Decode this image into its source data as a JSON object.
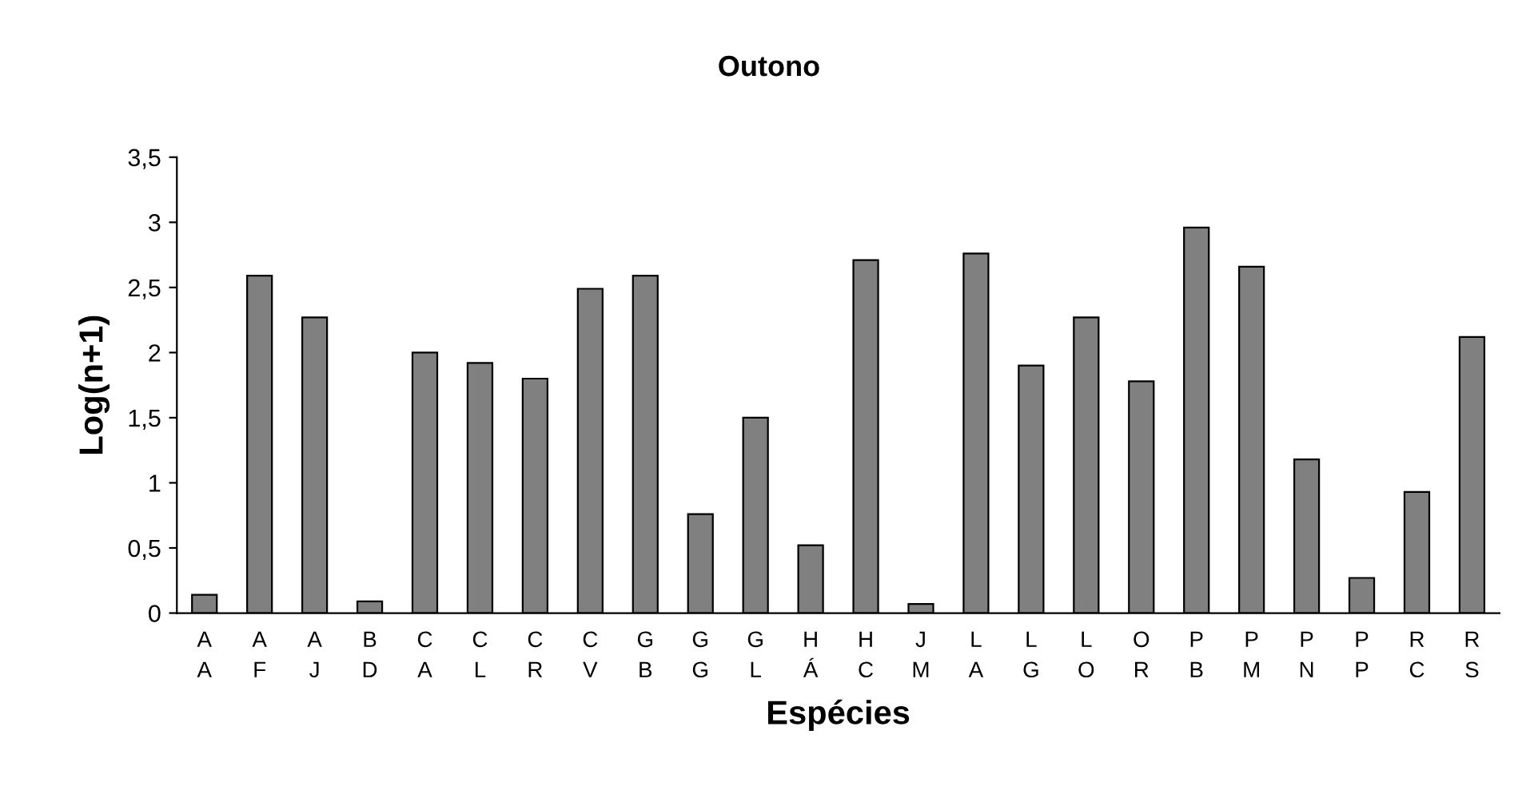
{
  "chart_data": {
    "type": "bar",
    "title": "Outono",
    "xlabel": "Espécies",
    "ylabel": "Log(n+1)",
    "categories": [
      "A\nA",
      "A\nF",
      "A\nJ",
      "B\nD",
      "C\nA",
      "C\nL",
      "C\nR",
      "C\nV",
      "G\nB",
      "G\nG",
      "G\nL",
      "H\nÁ",
      "H\nC",
      "J\nM",
      "L\nA",
      "L\nG",
      "L\nO",
      "O\nR",
      "P\nB",
      "P\nM",
      "P\nN",
      "P\nP",
      "R\nC",
      "R\nS"
    ],
    "values": [
      0.14,
      2.59,
      2.27,
      0.09,
      2.0,
      1.92,
      1.8,
      2.49,
      2.59,
      0.76,
      1.5,
      0.52,
      2.71,
      0.07,
      2.76,
      1.9,
      2.27,
      1.78,
      2.96,
      2.66,
      1.18,
      0.27,
      0.93,
      2.12
    ],
    "color": "#808080",
    "ylim": [
      0,
      3.5
    ],
    "yticks": [
      0,
      {
        "value": 0.5,
        "label": "0,5"
      },
      1,
      {
        "value": 1.5,
        "label": "1,5"
      },
      2,
      {
        "value": 2.5,
        "label": "2,5"
      },
      3,
      {
        "value": 3.5,
        "label": "3,5"
      }
    ],
    "grid": false,
    "legend": false
  }
}
